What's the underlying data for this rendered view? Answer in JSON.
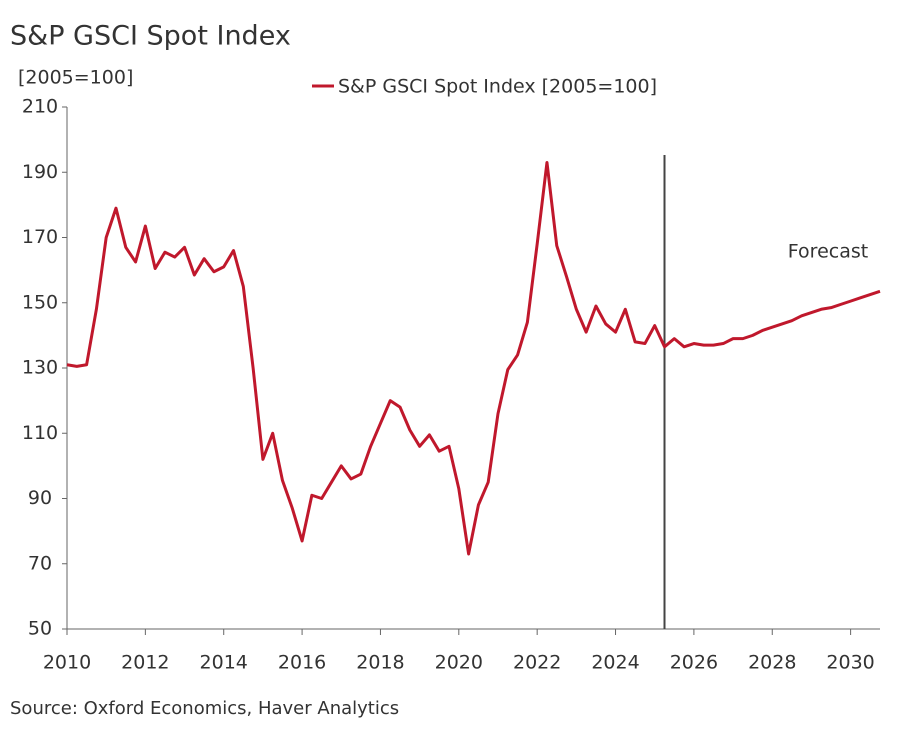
{
  "chart_data": {
    "type": "line",
    "title": "S&P GSCI Spot Index",
    "y_label": "[2005=100]",
    "source": "Source: Oxford Economics, Haver Analytics",
    "annotation": "Forecast",
    "forecast_start": 2025.25,
    "x": [
      2010,
      2010.25,
      2010.5,
      2010.75,
      2011,
      2011.25,
      2011.5,
      2011.75,
      2012,
      2012.25,
      2012.5,
      2012.75,
      2013,
      2013.25,
      2013.5,
      2013.75,
      2014,
      2014.25,
      2014.5,
      2014.75,
      2015,
      2015.25,
      2015.5,
      2015.75,
      2016,
      2016.25,
      2016.5,
      2016.75,
      2017,
      2017.25,
      2017.5,
      2017.75,
      2018,
      2018.25,
      2018.5,
      2018.75,
      2019,
      2019.25,
      2019.5,
      2019.75,
      2020,
      2020.25,
      2020.5,
      2020.75,
      2021,
      2021.25,
      2021.5,
      2021.75,
      2022,
      2022.25,
      2022.5,
      2022.75,
      2023,
      2023.25,
      2023.5,
      2023.75,
      2024,
      2024.25,
      2024.5,
      2024.75,
      2025,
      2025.25,
      2025.5,
      2025.75,
      2026,
      2026.25,
      2026.5,
      2026.75,
      2027,
      2027.25,
      2027.5,
      2027.75,
      2028,
      2028.25,
      2028.5,
      2028.75,
      2029,
      2029.25,
      2029.5,
      2029.75,
      2030,
      2030.25,
      2030.5,
      2030.75
    ],
    "series": [
      {
        "name": "S&P GSCI Spot Index [2005=100]",
        "color": "#c0182c",
        "values": [
          131,
          130.5,
          131,
          148,
          170,
          179,
          167,
          162.5,
          173.5,
          160.5,
          165.5,
          164,
          167,
          158.5,
          163.5,
          159.5,
          161,
          166,
          155,
          130,
          102,
          110,
          95.5,
          87,
          77,
          91,
          90,
          95,
          100,
          96,
          97.5,
          106,
          113,
          120,
          118,
          111,
          106,
          109.5,
          104.5,
          106,
          93,
          73,
          88,
          95,
          116,
          129.5,
          134,
          144,
          168,
          193,
          167.5,
          158,
          148,
          141,
          149,
          143.5,
          141,
          148,
          138,
          137.5,
          143,
          136.5,
          139,
          136.5,
          137.5,
          137,
          137,
          137.5,
          139,
          139,
          140,
          141.5,
          142.5,
          143.5,
          144.5,
          146,
          147,
          148,
          148.5,
          149.5,
          150.5,
          151.5,
          152.5,
          153.5
        ]
      }
    ],
    "xlim": [
      2010,
      2030.75
    ],
    "xticks": [
      2010,
      2012,
      2014,
      2016,
      2018,
      2020,
      2022,
      2024,
      2026,
      2028,
      2030
    ],
    "ylim": [
      50,
      210
    ],
    "yticks": [
      50,
      70,
      90,
      110,
      130,
      150,
      170,
      190,
      210
    ],
    "grid": false
  }
}
